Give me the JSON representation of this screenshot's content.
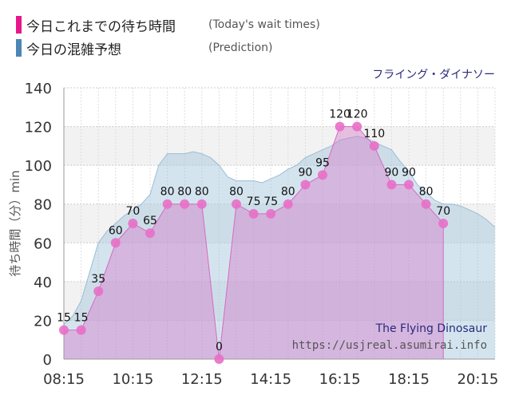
{
  "legend": [
    {
      "label": "今日これまでの待ち時間",
      "note": "(Today's wait times)",
      "color": "#e8168a"
    },
    {
      "label": "今日の混雑予想",
      "note": "(Prediction)",
      "color": "#4d86b4"
    }
  ],
  "chart_data": {
    "type": "area",
    "attraction": "フライング・ダイナソー",
    "watermark_title": "The Flying Dinosaur",
    "watermark_url": "https://usjreal.asumirai.info",
    "ylabel": "待ち時間（分）min",
    "ylim": [
      0,
      140
    ],
    "yticks": [
      "0",
      "20",
      "40",
      "60",
      "80",
      "100",
      "120",
      "140"
    ],
    "xlim_hours": [
      8.25,
      20.75
    ],
    "xticks": [
      "08:15",
      "10:15",
      "12:15",
      "14:15",
      "16:15",
      "18:15",
      "20:15"
    ],
    "grid": true,
    "legend_position": "top-left",
    "series": [
      {
        "name": "今日これまでの待ち時間",
        "color": "#e066b8",
        "x": [
          "08:15",
          "08:45",
          "09:15",
          "09:45",
          "10:15",
          "10:45",
          "11:15",
          "11:45",
          "12:15",
          "12:45",
          "13:15",
          "13:45",
          "14:15",
          "14:45",
          "15:15",
          "15:45",
          "16:15",
          "16:45",
          "17:15",
          "17:45",
          "18:15",
          "18:45",
          "19:15"
        ],
        "values": [
          15,
          15,
          35,
          60,
          70,
          65,
          80,
          80,
          80,
          0,
          80,
          75,
          75,
          80,
          90,
          95,
          120,
          120,
          110,
          90,
          90,
          80,
          70
        ]
      },
      {
        "name": "今日の混雑予想",
        "color": "#a9c6da",
        "x": [
          "08:15",
          "08:30",
          "08:45",
          "09:00",
          "09:15",
          "09:30",
          "09:45",
          "10:00",
          "10:15",
          "10:30",
          "10:45",
          "11:00",
          "11:15",
          "11:30",
          "11:45",
          "12:00",
          "12:15",
          "12:30",
          "12:45",
          "13:00",
          "13:15",
          "13:30",
          "13:45",
          "14:00",
          "14:15",
          "14:30",
          "14:45",
          "15:00",
          "15:15",
          "15:30",
          "15:45",
          "16:00",
          "16:15",
          "16:30",
          "16:45",
          "17:00",
          "17:15",
          "17:30",
          "17:45",
          "18:00",
          "18:15",
          "18:30",
          "18:45",
          "19:00",
          "19:15",
          "19:30",
          "19:45",
          "20:00",
          "20:15",
          "20:30",
          "20:45"
        ],
        "values": [
          18,
          22,
          30,
          45,
          60,
          66,
          70,
          74,
          77,
          80,
          85,
          100,
          106,
          106,
          106,
          107,
          106,
          104,
          100,
          94,
          92,
          92,
          92,
          91,
          93,
          95,
          98,
          100,
          104,
          106,
          108,
          110,
          113,
          114,
          115,
          114,
          112,
          110,
          108,
          102,
          97,
          90,
          86,
          82,
          80,
          80,
          79,
          77,
          75,
          72,
          68
        ]
      }
    ]
  }
}
